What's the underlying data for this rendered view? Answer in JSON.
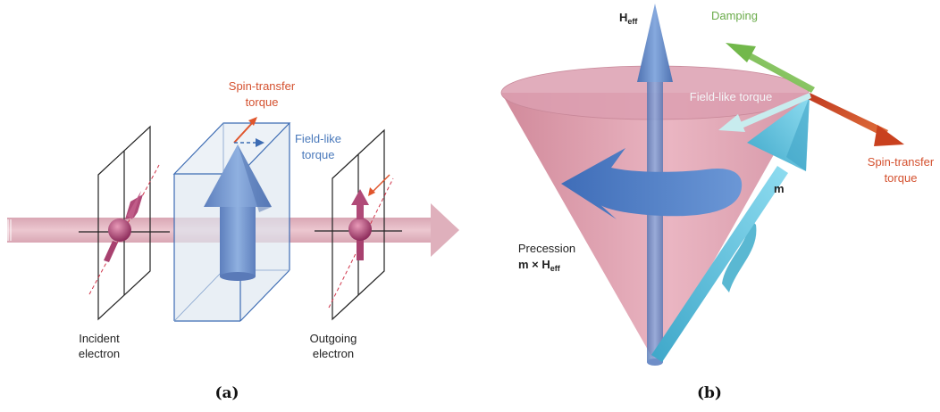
{
  "panel_a": {
    "caption": "(a)",
    "spin_transfer_label_1": "Spin-transfer",
    "spin_transfer_label_2": "torque",
    "field_like_label_1": "Field-like",
    "field_like_label_2": "torque",
    "incident_label_1": "Incident",
    "incident_label_2": "electron",
    "outgoing_label_1": "Outgoing",
    "outgoing_label_2": "electron"
  },
  "panel_b": {
    "caption": "(b)",
    "heff_main": "H",
    "heff_sub": "eff",
    "damping_label": "Damping",
    "field_like_label": "Field-like torque",
    "spin_transfer_label_1": "Spin-transfer",
    "spin_transfer_label_2": "torque",
    "m_label": "m",
    "precession_label": "Precession",
    "precession_formula_main": "m × H",
    "precession_formula_sub": "eff"
  },
  "colors": {
    "beam": "#e4b9c4",
    "layer_box": "#d8e4ee",
    "blue_arrow": "#6f8fc6",
    "electron": "#b04a78",
    "cone": "#d88ea2",
    "cyan_arrow": "#5bbcd6",
    "damping": "#7dbf56",
    "spin_transfer": "#d4512f",
    "field_like_blue": "#5b86c0",
    "field_like_light": "#c8ecee"
  }
}
